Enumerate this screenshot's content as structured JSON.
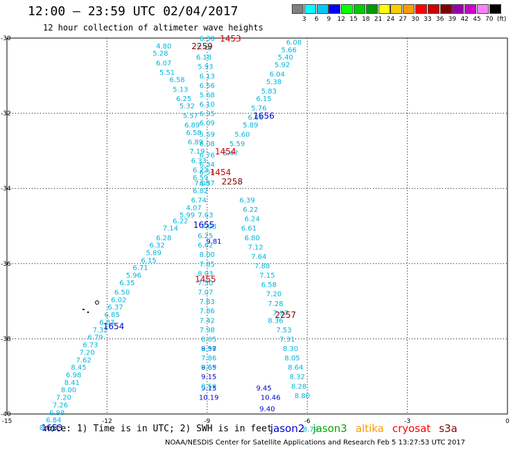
{
  "header": {
    "title": "12:00 — 23:59 UTC 02/04/2017",
    "subtitle": "12 hour collection of altimeter wave heights"
  },
  "color_scale": {
    "colors": [
      "#808080",
      "#00ffff",
      "#00c8ff",
      "#0000ff",
      "#00ff00",
      "#00cc00",
      "#009900",
      "#ffff00",
      "#ffcc00",
      "#ff9900",
      "#ff0000",
      "#cc0000",
      "#800000",
      "#9900aa",
      "#cc00cc",
      "#ff80ff",
      "#000000"
    ],
    "labels": [
      "3",
      "6",
      "9",
      "12",
      "15",
      "18",
      "21",
      "24",
      "27",
      "30",
      "33",
      "36",
      "39",
      "42",
      "45",
      "70",
      "(ft)"
    ]
  },
  "chart_data": {
    "type": "scatter",
    "xlim": [
      -15,
      0
    ],
    "ylim": [
      -40,
      -30
    ],
    "xticks": [
      "-15",
      "-12",
      "-9",
      "-6",
      "-3",
      "0"
    ],
    "yticks": [
      "-30",
      "-32",
      "-34",
      "-36",
      "-38",
      "-40"
    ],
    "grid": true,
    "series": [
      {
        "name": "jason2",
        "color": "#0000cc",
        "points": [
          {
            "x": -8.8,
            "y": -35.4,
            "v": "9.81"
          },
          {
            "x": -7.3,
            "y": -39.3,
            "v": "9.45"
          },
          {
            "x": -7.1,
            "y": -39.55,
            "v": "10.46"
          },
          {
            "x": -7.2,
            "y": -39.85,
            "v": "9.40"
          },
          {
            "x": -8.95,
            "y": -38.25,
            "v": "9.57"
          },
          {
            "x": -8.95,
            "y": -38.75,
            "v": "9.65"
          },
          {
            "x": -8.95,
            "y": -39.0,
            "v": "9.15"
          },
          {
            "x": -8.95,
            "y": -39.3,
            "v": "9.15"
          },
          {
            "x": -8.95,
            "y": -39.55,
            "v": "10.19"
          }
        ]
      },
      {
        "name": "jason3",
        "color": "#00aa00",
        "points": []
      },
      {
        "name": "altika",
        "color": "#ff9900",
        "points": []
      },
      {
        "name": "cryosat",
        "color": "#ff0000",
        "points": []
      },
      {
        "name": "s3a",
        "color": "#800000",
        "points": []
      },
      {
        "name": "",
        "color": "#00b4dc",
        "points": [
          {
            "x": -9.0,
            "y": -30.0,
            "v": "6.30"
          },
          {
            "x": -9.1,
            "y": -30.25,
            "v": "7.48"
          },
          {
            "x": -9.1,
            "y": -30.5,
            "v": "6.18"
          },
          {
            "x": -9.05,
            "y": -30.75,
            "v": "5.93"
          },
          {
            "x": -9.0,
            "y": -31.0,
            "v": "6.13"
          },
          {
            "x": -9.0,
            "y": -31.25,
            "v": "6.56"
          },
          {
            "x": -9.0,
            "y": -31.5,
            "v": "5.68"
          },
          {
            "x": -9.0,
            "y": -31.75,
            "v": "6.10"
          },
          {
            "x": -9.0,
            "y": -32.0,
            "v": "6.95"
          },
          {
            "x": -9.0,
            "y": -32.25,
            "v": "6.09"
          },
          {
            "x": -9.0,
            "y": -32.55,
            "v": "5.59"
          },
          {
            "x": -9.0,
            "y": -32.8,
            "v": "6.08"
          },
          {
            "x": -9.0,
            "y": -33.1,
            "v": "6.76"
          },
          {
            "x": -9.0,
            "y": -33.35,
            "v": "6.34"
          },
          {
            "x": -9.0,
            "y": -33.55,
            "v": "6.54"
          },
          {
            "x": -9.0,
            "y": -33.85,
            "v": "6.57"
          },
          {
            "x": -10.3,
            "y": -30.2,
            "v": "4.80"
          },
          {
            "x": -10.4,
            "y": -30.4,
            "v": "5.28"
          },
          {
            "x": -10.3,
            "y": -30.65,
            "v": "6.07"
          },
          {
            "x": -10.2,
            "y": -30.9,
            "v": "5.51"
          },
          {
            "x": -9.9,
            "y": -31.1,
            "v": "6.58"
          },
          {
            "x": -9.8,
            "y": -31.35,
            "v": "5.13"
          },
          {
            "x": -9.7,
            "y": -31.6,
            "v": "6.25"
          },
          {
            "x": -9.6,
            "y": -31.8,
            "v": "5.32"
          },
          {
            "x": -9.5,
            "y": -32.05,
            "v": "5.57"
          },
          {
            "x": -9.45,
            "y": -32.3,
            "v": "6.89"
          },
          {
            "x": -9.4,
            "y": -32.5,
            "v": "6.58"
          },
          {
            "x": -9.35,
            "y": -32.75,
            "v": "6.89"
          },
          {
            "x": -9.3,
            "y": -33.0,
            "v": "7.19"
          },
          {
            "x": -9.25,
            "y": -33.25,
            "v": "6.33"
          },
          {
            "x": -9.2,
            "y": -33.5,
            "v": "6.22"
          },
          {
            "x": -9.2,
            "y": -33.7,
            "v": "6.59"
          },
          {
            "x": -9.15,
            "y": -33.85,
            "v": "7.08"
          },
          {
            "x": -9.2,
            "y": -34.05,
            "v": "6.82"
          },
          {
            "x": -9.25,
            "y": -34.3,
            "v": "6.74"
          },
          {
            "x": -9.4,
            "y": -34.5,
            "v": "4.07"
          },
          {
            "x": -9.6,
            "y": -34.7,
            "v": "5.99"
          },
          {
            "x": -9.8,
            "y": -34.85,
            "v": "6.22"
          },
          {
            "x": -10.1,
            "y": -35.05,
            "v": "7.14"
          },
          {
            "x": -10.3,
            "y": -35.3,
            "v": "6.28"
          },
          {
            "x": -10.5,
            "y": -35.5,
            "v": "6.32"
          },
          {
            "x": -10.6,
            "y": -35.7,
            "v": "5.89"
          },
          {
            "x": -10.75,
            "y": -35.9,
            "v": "6.15"
          },
          {
            "x": -11.0,
            "y": -36.1,
            "v": "6.71"
          },
          {
            "x": -11.2,
            "y": -36.3,
            "v": "5.96"
          },
          {
            "x": -11.4,
            "y": -36.5,
            "v": "6.35"
          },
          {
            "x": -11.55,
            "y": -36.75,
            "v": "6.50"
          },
          {
            "x": -11.65,
            "y": -36.95,
            "v": "6.02"
          },
          {
            "x": -11.75,
            "y": -37.15,
            "v": "6.37"
          },
          {
            "x": -11.85,
            "y": -37.35,
            "v": "6.85"
          },
          {
            "x": -12.0,
            "y": -37.55,
            "v": "6.83"
          },
          {
            "x": -12.2,
            "y": -37.75,
            "v": "7.32"
          },
          {
            "x": -12.35,
            "y": -37.95,
            "v": "6.79"
          },
          {
            "x": -12.5,
            "y": -38.15,
            "v": "6.73"
          },
          {
            "x": -12.6,
            "y": -38.35,
            "v": "7.20"
          },
          {
            "x": -12.7,
            "y": -38.55,
            "v": "7.62"
          },
          {
            "x": -12.85,
            "y": -38.75,
            "v": "8.45"
          },
          {
            "x": -13.0,
            "y": -38.95,
            "v": "6.98"
          },
          {
            "x": -13.05,
            "y": -39.15,
            "v": "8.41"
          },
          {
            "x": -13.15,
            "y": -39.35,
            "v": "8.00"
          },
          {
            "x": -13.3,
            "y": -39.55,
            "v": "7.20"
          },
          {
            "x": -13.4,
            "y": -39.75,
            "v": "7.26"
          },
          {
            "x": -13.5,
            "y": -39.95,
            "v": "6.98"
          },
          {
            "x": -13.6,
            "y": -40.15,
            "v": "6.84"
          },
          {
            "x": -13.8,
            "y": -40.35,
            "v": "8.34"
          },
          {
            "x": -6.4,
            "y": -30.1,
            "v": "6.08"
          },
          {
            "x": -6.55,
            "y": -30.3,
            "v": "5.66"
          },
          {
            "x": -6.65,
            "y": -30.5,
            "v": "5.40"
          },
          {
            "x": -6.75,
            "y": -30.7,
            "v": "5.92"
          },
          {
            "x": -6.9,
            "y": -30.95,
            "v": "6.04"
          },
          {
            "x": -7.0,
            "y": -31.15,
            "v": "5.38"
          },
          {
            "x": -7.15,
            "y": -31.4,
            "v": "5.83"
          },
          {
            "x": -7.3,
            "y": -31.6,
            "v": "6.15"
          },
          {
            "x": -7.45,
            "y": -31.85,
            "v": "5.76"
          },
          {
            "x": -7.55,
            "y": -32.1,
            "v": "6.06"
          },
          {
            "x": -7.7,
            "y": -32.3,
            "v": "5.89"
          },
          {
            "x": -7.95,
            "y": -32.55,
            "v": "5.60"
          },
          {
            "x": -8.1,
            "y": -32.8,
            "v": "5.59"
          },
          {
            "x": -8.3,
            "y": -33.05,
            "v": "5.47"
          },
          {
            "x": -7.8,
            "y": -34.3,
            "v": "6.39"
          },
          {
            "x": -7.7,
            "y": -34.55,
            "v": "6.22"
          },
          {
            "x": -7.65,
            "y": -34.8,
            "v": "6.24"
          },
          {
            "x": -7.75,
            "y": -35.05,
            "v": "6.61"
          },
          {
            "x": -7.65,
            "y": -35.3,
            "v": "6.80"
          },
          {
            "x": -7.55,
            "y": -35.55,
            "v": "7.12"
          },
          {
            "x": -7.45,
            "y": -35.8,
            "v": "7.64"
          },
          {
            "x": -7.35,
            "y": -36.05,
            "v": "7.88"
          },
          {
            "x": -7.2,
            "y": -36.3,
            "v": "7.15"
          },
          {
            "x": -7.15,
            "y": -36.55,
            "v": "6.58"
          },
          {
            "x": -7.0,
            "y": -36.8,
            "v": "7.20"
          },
          {
            "x": -6.95,
            "y": -37.05,
            "v": "7.28"
          },
          {
            "x": -6.8,
            "y": -37.3,
            "v": "7.97"
          },
          {
            "x": -6.95,
            "y": -37.5,
            "v": "8.36"
          },
          {
            "x": -6.7,
            "y": -37.75,
            "v": "7.53"
          },
          {
            "x": -6.6,
            "y": -38.0,
            "v": "7.31"
          },
          {
            "x": -6.5,
            "y": -38.25,
            "v": "8.30"
          },
          {
            "x": -6.45,
            "y": -38.5,
            "v": "8.05"
          },
          {
            "x": -6.35,
            "y": -38.75,
            "v": "8.64"
          },
          {
            "x": -6.3,
            "y": -39.0,
            "v": "8.32"
          },
          {
            "x": -6.25,
            "y": -39.25,
            "v": "8.28"
          },
          {
            "x": -6.15,
            "y": -39.5,
            "v": "8.80"
          },
          {
            "x": -5.9,
            "y": -40.4,
            "v": "8.79"
          },
          {
            "x": -8.95,
            "y": -35.0,
            "v": "7.03"
          },
          {
            "x": -9.05,
            "y": -34.7,
            "v": "7.63"
          },
          {
            "x": -9.05,
            "y": -35.25,
            "v": "6.25"
          },
          {
            "x": -9.05,
            "y": -35.5,
            "v": "6.62"
          },
          {
            "x": -9.0,
            "y": -35.75,
            "v": "8.00"
          },
          {
            "x": -9.0,
            "y": -36.0,
            "v": "7.85"
          },
          {
            "x": -9.05,
            "y": -36.25,
            "v": "8.03"
          },
          {
            "x": -9.05,
            "y": -36.5,
            "v": "7.50"
          },
          {
            "x": -9.05,
            "y": -36.75,
            "v": "7.07"
          },
          {
            "x": -9.0,
            "y": -37.0,
            "v": "7.83"
          },
          {
            "x": -9.0,
            "y": -37.25,
            "v": "7.86"
          },
          {
            "x": -9.0,
            "y": -37.5,
            "v": "7.42"
          },
          {
            "x": -9.0,
            "y": -37.75,
            "v": "7.98"
          },
          {
            "x": -8.95,
            "y": -38.0,
            "v": "8.05"
          },
          {
            "x": -8.95,
            "y": -38.25,
            "v": "8.96"
          },
          {
            "x": -8.95,
            "y": -38.5,
            "v": "7.86"
          },
          {
            "x": -8.95,
            "y": -38.75,
            "v": "8.69"
          },
          {
            "x": -8.95,
            "y": -39.25,
            "v": "8.59"
          }
        ]
      }
    ],
    "time_labels": [
      {
        "x": -8.3,
        "y": -30.0,
        "t": "1453",
        "color": "#cc0000"
      },
      {
        "x": -9.15,
        "y": -30.2,
        "t": "2259",
        "color": "#800000"
      },
      {
        "x": -7.3,
        "y": -32.05,
        "t": "1656",
        "color": "#0000cc"
      },
      {
        "x": -8.45,
        "y": -33.0,
        "t": "1454",
        "color": "#cc0000"
      },
      {
        "x": -8.6,
        "y": -33.55,
        "t": "1454",
        "color": "#cc0000"
      },
      {
        "x": -8.25,
        "y": -33.8,
        "t": "2258",
        "color": "#800000"
      },
      {
        "x": -9.1,
        "y": -34.95,
        "t": "1655",
        "color": "#0000cc"
      },
      {
        "x": -9.05,
        "y": -36.4,
        "t": "1455",
        "color": "#cc0000"
      },
      {
        "x": -6.65,
        "y": -37.35,
        "t": "2257",
        "color": "#800000"
      },
      {
        "x": -11.8,
        "y": -37.65,
        "t": "1654",
        "color": "#0000cc"
      },
      {
        "x": -13.65,
        "y": -40.35,
        "t": "1653",
        "color": "#0000cc"
      }
    ]
  },
  "footer": {
    "note": "note:  1) Time is in UTC;  2) SWH is in feet",
    "credit": "NOAA/NESDIS Center for Satellite Applications and Research     Feb  5 13:27:53 UTC 2017"
  }
}
